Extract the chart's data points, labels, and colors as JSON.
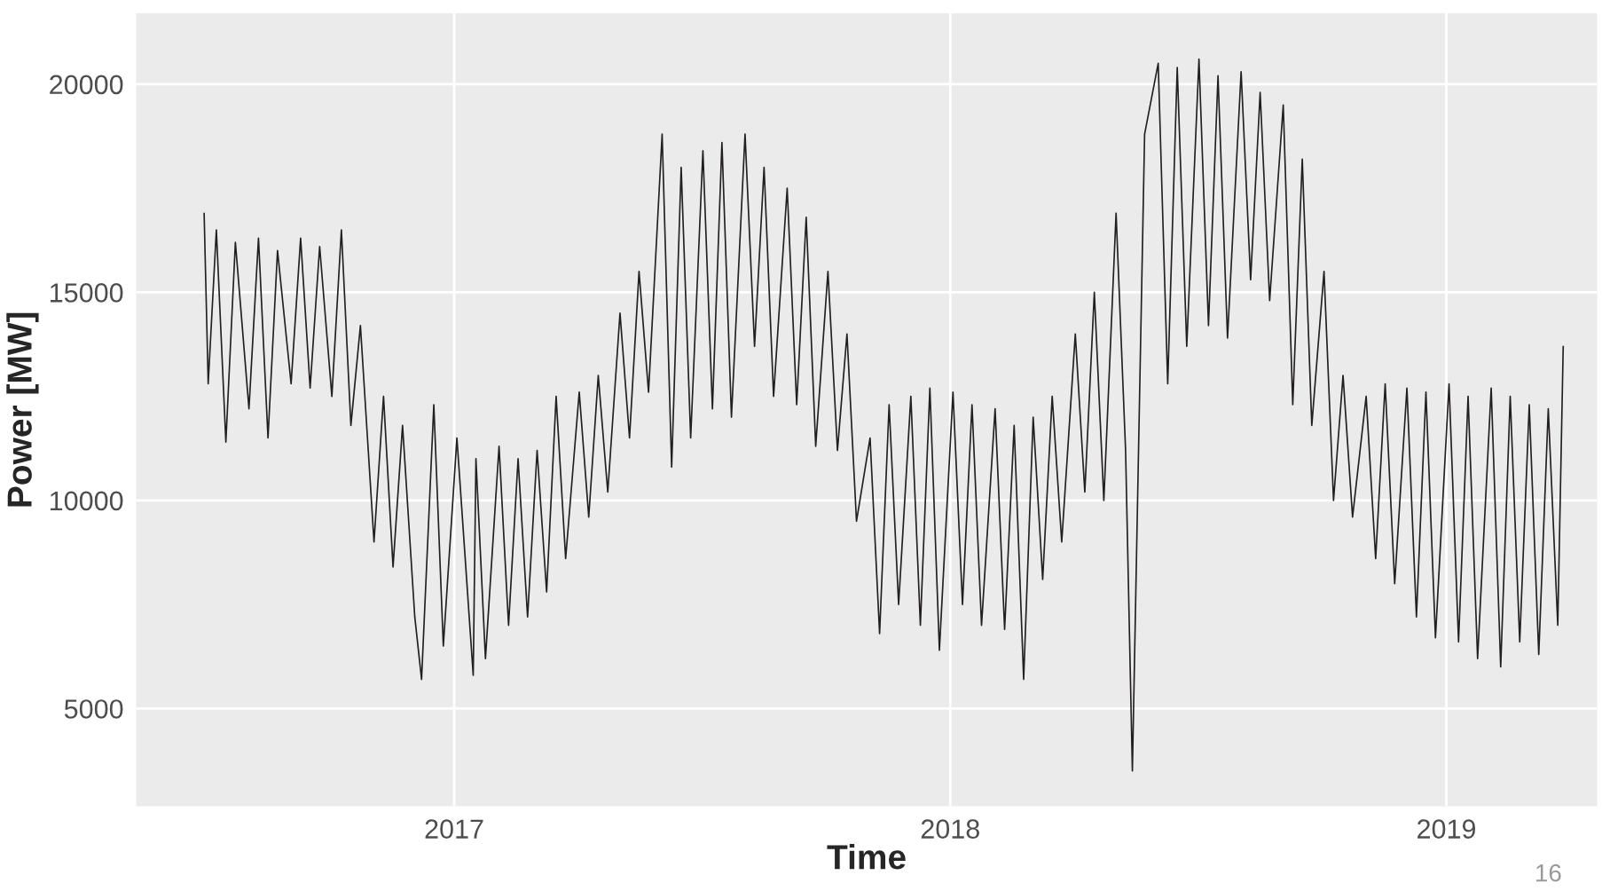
{
  "chart_data": {
    "type": "line",
    "xlabel": "Time",
    "ylabel": "Power [MW]",
    "xlim": [
      "2016-05-12",
      "2019-04-22"
    ],
    "ylim": [
      2650,
      21700
    ],
    "xticks": [
      {
        "value": "2017-01-01",
        "label": "2017"
      },
      {
        "value": "2018-01-01",
        "label": "2018"
      },
      {
        "value": "2019-01-01",
        "label": "2019"
      }
    ],
    "yticks": [
      5000,
      10000,
      15000,
      20000
    ],
    "grid": true,
    "legend": false,
    "marker": "none",
    "line_style": "solid",
    "annotations": [
      "16"
    ],
    "series": [
      {
        "color": "#231f20",
        "x": [
          "2016-07-01",
          "2016-07-04",
          "2016-07-10",
          "2016-07-17",
          "2016-07-24",
          "2016-08-03",
          "2016-08-10",
          "2016-08-17",
          "2016-08-24",
          "2016-09-03",
          "2016-09-10",
          "2016-09-17",
          "2016-09-24",
          "2016-10-03",
          "2016-10-10",
          "2016-10-17",
          "2016-10-24",
          "2016-11-03",
          "2016-11-10",
          "2016-11-17",
          "2016-11-24",
          "2016-12-03",
          "2016-12-08",
          "2016-12-17",
          "2016-12-24",
          "2017-01-03",
          "2017-01-15",
          "2017-01-17",
          "2017-01-24",
          "2017-02-03",
          "2017-02-10",
          "2017-02-17",
          "2017-02-24",
          "2017-03-03",
          "2017-03-10",
          "2017-03-17",
          "2017-03-24",
          "2017-04-03",
          "2017-04-10",
          "2017-04-17",
          "2017-04-24",
          "2017-05-03",
          "2017-05-10",
          "2017-05-17",
          "2017-05-24",
          "2017-06-03",
          "2017-06-10",
          "2017-06-17",
          "2017-06-24",
          "2017-07-03",
          "2017-07-10",
          "2017-07-17",
          "2017-07-24",
          "2017-08-03",
          "2017-08-10",
          "2017-08-17",
          "2017-08-24",
          "2017-09-03",
          "2017-09-10",
          "2017-09-17",
          "2017-09-24",
          "2017-10-03",
          "2017-10-10",
          "2017-10-17",
          "2017-10-24",
          "2017-11-03",
          "2017-11-10",
          "2017-11-17",
          "2017-11-24",
          "2017-12-03",
          "2017-12-10",
          "2017-12-17",
          "2017-12-24",
          "2018-01-03",
          "2018-01-10",
          "2018-01-17",
          "2018-01-24",
          "2018-02-03",
          "2018-02-10",
          "2018-02-17",
          "2018-02-24",
          "2018-03-03",
          "2018-03-10",
          "2018-03-17",
          "2018-03-24",
          "2018-04-03",
          "2018-04-10",
          "2018-04-17",
          "2018-04-24",
          "2018-05-03",
          "2018-05-10",
          "2018-05-15",
          "2018-05-24",
          "2018-06-03",
          "2018-06-10",
          "2018-06-17",
          "2018-06-24",
          "2018-07-03",
          "2018-07-10",
          "2018-07-17",
          "2018-07-24",
          "2018-08-03",
          "2018-08-10",
          "2018-08-17",
          "2018-08-24",
          "2018-09-03",
          "2018-09-10",
          "2018-09-17",
          "2018-09-24",
          "2018-10-03",
          "2018-10-10",
          "2018-10-17",
          "2018-10-24",
          "2018-11-03",
          "2018-11-10",
          "2018-11-17",
          "2018-11-24",
          "2018-12-03",
          "2018-12-10",
          "2018-12-17",
          "2018-12-24",
          "2019-01-03",
          "2019-01-10",
          "2019-01-17",
          "2019-01-24",
          "2019-02-03",
          "2019-02-10",
          "2019-02-17",
          "2019-02-24",
          "2019-03-03",
          "2019-03-10",
          "2019-03-17",
          "2019-03-24",
          "2019-03-28"
        ],
        "values": [
          16900,
          12800,
          16500,
          11400,
          16200,
          12200,
          16300,
          11500,
          16000,
          12800,
          16300,
          12700,
          16100,
          12500,
          16500,
          11800,
          14200,
          9000,
          12500,
          8400,
          11800,
          7200,
          5700,
          12300,
          6500,
          11500,
          5800,
          11000,
          6200,
          11300,
          7000,
          11000,
          7200,
          11200,
          7800,
          12500,
          8600,
          12600,
          9600,
          13000,
          10200,
          14500,
          11500,
          15500,
          12600,
          18800,
          10800,
          18000,
          11500,
          18400,
          12200,
          18600,
          12000,
          18800,
          13700,
          18000,
          12500,
          17500,
          12300,
          16800,
          11300,
          15500,
          11200,
          14000,
          9500,
          11500,
          6800,
          12300,
          7500,
          12500,
          7000,
          12700,
          6400,
          12600,
          7500,
          12300,
          7000,
          12200,
          6900,
          11800,
          5700,
          12000,
          8100,
          12500,
          9000,
          14000,
          10200,
          15000,
          10000,
          16900,
          11200,
          3500,
          18800,
          20500,
          12800,
          20400,
          13700,
          20600,
          14200,
          20200,
          13900,
          20300,
          15300,
          19800,
          14800,
          19500,
          12300,
          18200,
          11800,
          15500,
          10000,
          13000,
          9600,
          12500,
          8600,
          12800,
          8000,
          12700,
          7200,
          12600,
          6700,
          12800,
          6600,
          12500,
          6200,
          12700,
          6000,
          12500,
          6600,
          12300,
          6300,
          12200,
          7000,
          13700
        ]
      }
    ]
  }
}
